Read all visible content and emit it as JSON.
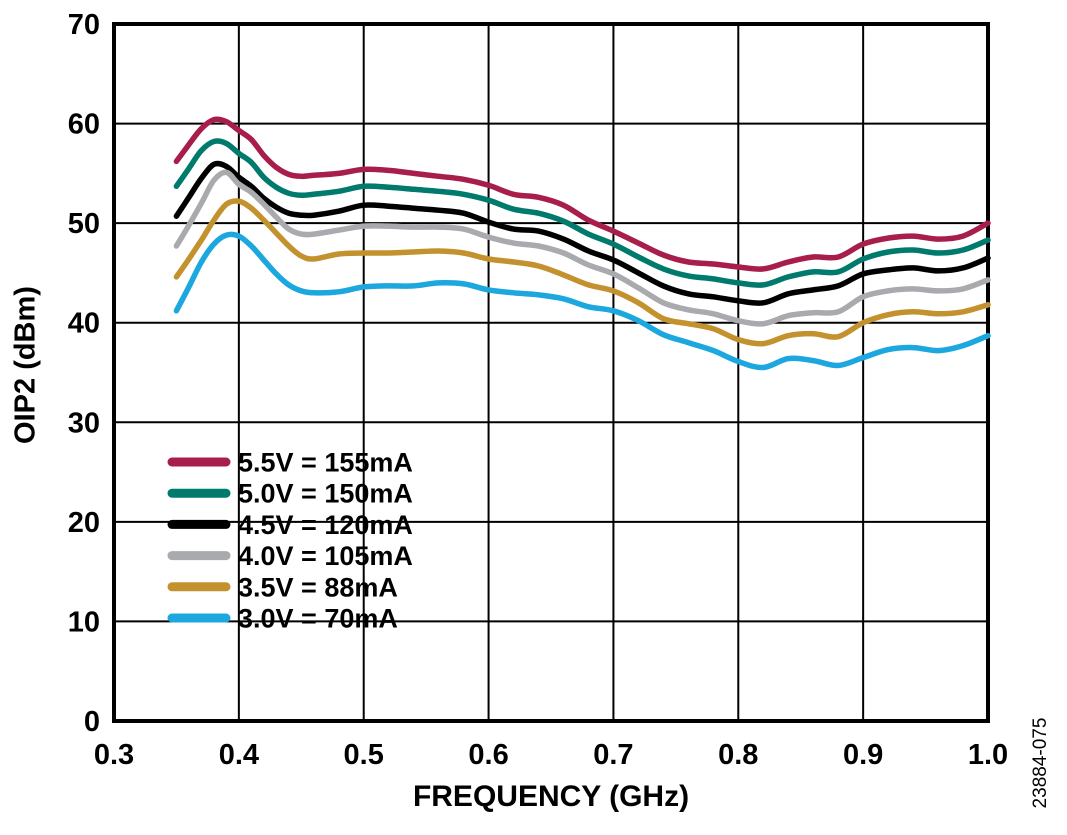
{
  "side_label": "23884-075",
  "chart_data": {
    "type": "line",
    "title": "",
    "xlabel": "FREQUENCY (GHz)",
    "ylabel": "OIP2 (dBm)",
    "xlim": [
      0.3,
      1.0
    ],
    "ylim": [
      0,
      70
    ],
    "x_ticks": [
      "0.3",
      "0.4",
      "0.5",
      "0.6",
      "0.7",
      "0.8",
      "0.9",
      "1.0"
    ],
    "y_ticks": [
      "0",
      "10",
      "20",
      "30",
      "40",
      "50",
      "60",
      "70"
    ],
    "grid": true,
    "legend_position": "inside-left-middle",
    "axis_color": "#000000",
    "background_color": "#ffffff",
    "x": [
      0.35,
      0.36,
      0.37,
      0.38,
      0.39,
      0.4,
      0.41,
      0.42,
      0.43,
      0.44,
      0.45,
      0.46,
      0.48,
      0.5,
      0.52,
      0.54,
      0.56,
      0.58,
      0.6,
      0.62,
      0.64,
      0.66,
      0.68,
      0.7,
      0.72,
      0.74,
      0.76,
      0.78,
      0.8,
      0.82,
      0.84,
      0.86,
      0.88,
      0.9,
      0.92,
      0.94,
      0.96,
      0.98,
      1.0
    ],
    "series": [
      {
        "name": "5.5V = 155mA",
        "color": "#A81E4B",
        "values": [
          56.2,
          57.9,
          59.5,
          60.4,
          60.2,
          59.3,
          58.4,
          56.8,
          55.6,
          54.9,
          54.7,
          54.8,
          55.0,
          55.4,
          55.3,
          55.0,
          54.7,
          54.4,
          53.8,
          52.9,
          52.6,
          51.8,
          50.3,
          49.2,
          48.0,
          46.8,
          46.1,
          45.9,
          45.6,
          45.4,
          46.1,
          46.6,
          46.6,
          47.9,
          48.5,
          48.7,
          48.4,
          48.7,
          50.0
        ]
      },
      {
        "name": "5.0V = 150mA",
        "color": "#007A6D",
        "values": [
          53.7,
          55.5,
          57.3,
          58.2,
          58.0,
          57.0,
          56.1,
          54.6,
          53.6,
          53.0,
          52.8,
          52.9,
          53.2,
          53.7,
          53.6,
          53.4,
          53.2,
          52.9,
          52.3,
          51.4,
          51.0,
          50.2,
          48.9,
          47.9,
          46.6,
          45.4,
          44.7,
          44.4,
          44.0,
          43.8,
          44.6,
          45.1,
          45.1,
          46.4,
          47.1,
          47.3,
          47.0,
          47.3,
          48.3
        ]
      },
      {
        "name": "4.5V = 120mA",
        "color": "#000000",
        "values": [
          50.7,
          52.6,
          54.5,
          55.9,
          55.7,
          54.6,
          53.7,
          52.5,
          51.6,
          51.0,
          50.8,
          50.8,
          51.2,
          51.8,
          51.7,
          51.5,
          51.3,
          51.0,
          50.1,
          49.4,
          49.2,
          48.4,
          47.2,
          46.3,
          45.0,
          43.7,
          42.9,
          42.6,
          42.2,
          42.0,
          42.9,
          43.3,
          43.7,
          44.9,
          45.3,
          45.5,
          45.2,
          45.5,
          46.5
        ]
      },
      {
        "name": "4.0V = 105mA",
        "color": "#A8AAAD",
        "values": [
          47.7,
          49.8,
          52.0,
          54.3,
          55.1,
          53.9,
          53.1,
          51.9,
          50.6,
          49.4,
          48.9,
          48.9,
          49.3,
          49.7,
          49.7,
          49.6,
          49.6,
          49.4,
          48.6,
          48.0,
          47.7,
          47.0,
          45.8,
          44.9,
          43.5,
          42.0,
          41.3,
          40.9,
          40.2,
          39.9,
          40.7,
          41.0,
          41.1,
          42.6,
          43.2,
          43.4,
          43.2,
          43.4,
          44.3
        ]
      },
      {
        "name": "3.5V = 88mA",
        "color": "#C3922E",
        "values": [
          44.6,
          46.4,
          48.3,
          50.3,
          51.9,
          52.2,
          51.5,
          50.3,
          49.0,
          47.7,
          46.7,
          46.4,
          46.9,
          47.0,
          47.0,
          47.1,
          47.2,
          47.0,
          46.4,
          46.1,
          45.7,
          44.8,
          43.8,
          43.2,
          42.0,
          40.4,
          39.9,
          39.4,
          38.3,
          37.9,
          38.7,
          38.9,
          38.6,
          40.0,
          40.8,
          41.1,
          40.9,
          41.1,
          41.8
        ]
      },
      {
        "name": "3.0V = 70mA",
        "color": "#1CA7DF",
        "values": [
          41.2,
          43.6,
          46.1,
          47.9,
          48.8,
          48.7,
          47.7,
          46.3,
          44.9,
          43.8,
          43.2,
          43.0,
          43.1,
          43.6,
          43.7,
          43.7,
          44.0,
          43.9,
          43.3,
          43.0,
          42.8,
          42.4,
          41.6,
          41.2,
          40.2,
          38.8,
          38.0,
          37.2,
          36.1,
          35.5,
          36.4,
          36.2,
          35.7,
          36.5,
          37.3,
          37.5,
          37.2,
          37.7,
          38.7
        ]
      }
    ]
  }
}
